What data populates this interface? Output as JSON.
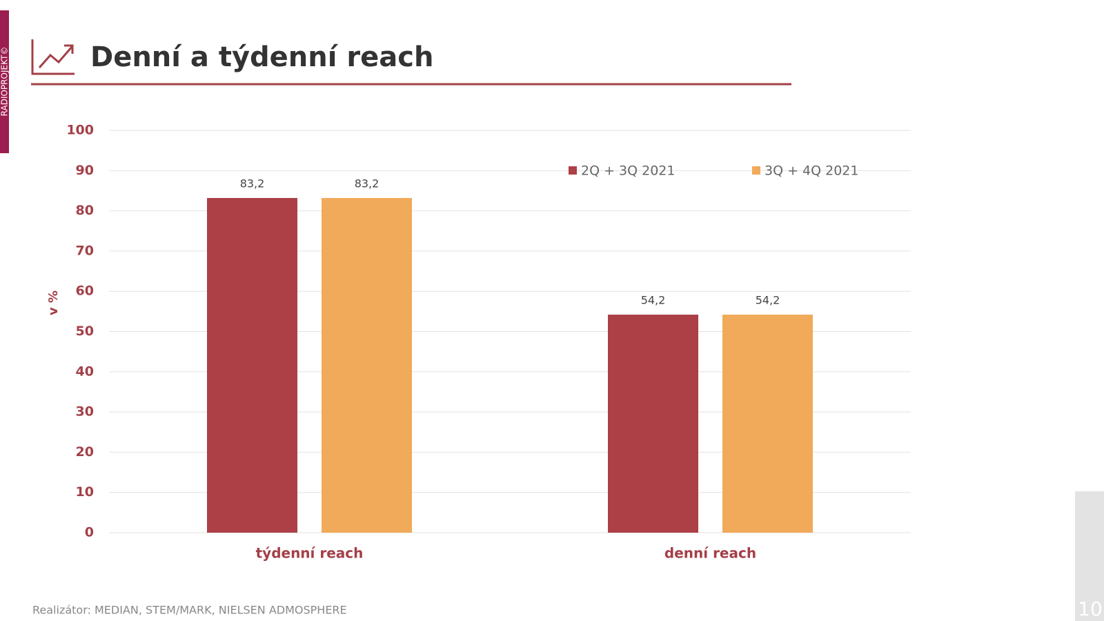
{
  "side_label": "RADIOPROJEKT©",
  "page_number": "10",
  "footer": "Realizátor: MEDIAN, STEM/MARK, NIELSEN ADMOSPHERE",
  "chart_data": {
    "type": "bar",
    "title": "Denní a týdenní reach",
    "y_label": "v %",
    "categories": [
      "týdenní reach",
      "denní reach"
    ],
    "series": [
      {
        "name": "2Q + 3Q 2021",
        "color": "#ad3f47",
        "values": [
          83.2,
          54.2
        ],
        "value_labels": [
          "83,2",
          "54,2"
        ]
      },
      {
        "name": "3Q + 4Q 2021",
        "color": "#f1a95a",
        "values": [
          83.2,
          54.2
        ],
        "value_labels": [
          "83,2",
          "54,2"
        ]
      }
    ],
    "ylim": [
      0,
      100
    ],
    "yticks": [
      0,
      10,
      20,
      30,
      40,
      50,
      60,
      70,
      80,
      90,
      100
    ],
    "grid": true,
    "legend": "top-right"
  }
}
